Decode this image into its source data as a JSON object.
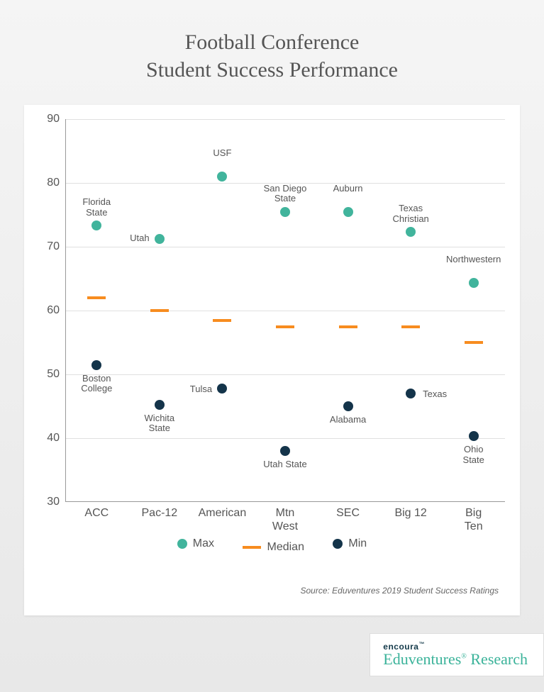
{
  "title_line1": "Football Conference",
  "title_line2": "Student Success Performance",
  "chart": {
    "ymin": 30,
    "ymax": 90,
    "yticks": [
      30,
      40,
      50,
      60,
      70,
      80,
      90
    ],
    "grid_color": "#e0e0e0",
    "axis_color": "#999999",
    "max_color": "#41b49c",
    "min_color": "#14344a",
    "median_color": "#f78c1f",
    "categories": [
      "ACC",
      "Pac-12",
      "American",
      "Mtn\nWest",
      "SEC",
      "Big 12",
      "Big Ten"
    ],
    "series": [
      {
        "conf": "ACC",
        "max": 73.3,
        "max_label": "Florida\nState",
        "median": 62,
        "min": 51.5,
        "min_label": "Boston\nCollege",
        "max_label_pos": "above",
        "min_label_pos": "below"
      },
      {
        "conf": "Pac-12",
        "max": 71.2,
        "max_label": "Utah",
        "median": 60,
        "min": 45.2,
        "min_label": "Wichita\nState",
        "max_label_pos": "left",
        "min_label_pos": "below"
      },
      {
        "conf": "American",
        "max": 81,
        "max_label": "USF",
        "median": 58.5,
        "min": 47.8,
        "min_label": "Tulsa",
        "max_label_pos": "above",
        "min_label_pos": "left"
      },
      {
        "conf": "Mtn West",
        "max": 75.5,
        "max_label": "San Diego\nState",
        "median": 57.5,
        "min": 38,
        "min_label": "Utah State",
        "max_label_pos": "above",
        "min_label_pos": "below"
      },
      {
        "conf": "SEC",
        "max": 75.5,
        "max_label": "Auburn",
        "median": 57.5,
        "min": 45,
        "min_label": "Alabama",
        "max_label_pos": "above",
        "min_label_pos": "below"
      },
      {
        "conf": "Big 12",
        "max": 72.3,
        "max_label": "Texas\nChristian",
        "median": 57.5,
        "min": 47,
        "min_label": "Texas",
        "max_label_pos": "above",
        "min_label_pos": "right"
      },
      {
        "conf": "Big Ten",
        "max": 64.3,
        "max_label": "Northwestern",
        "median": 55,
        "min": 40.3,
        "min_label": "Ohio State",
        "max_label_pos": "above",
        "min_label_pos": "below"
      }
    ]
  },
  "legend": {
    "max": "Max",
    "median": "Median",
    "min": "Min"
  },
  "source": "Source: Eduventures 2019 Student Success Ratings",
  "footer": {
    "brand": "encoura",
    "line2": "Eduventures Research"
  }
}
